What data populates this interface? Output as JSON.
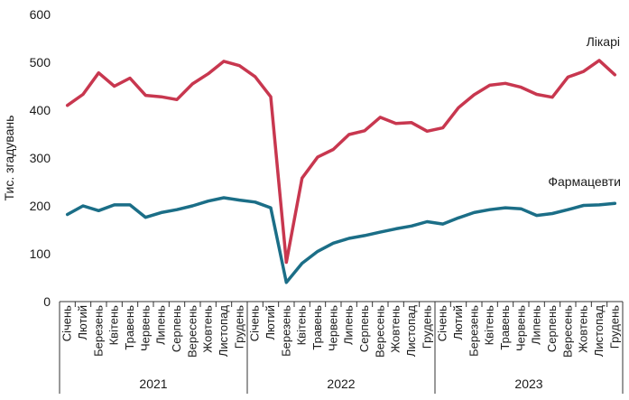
{
  "chart_data": {
    "type": "line",
    "title": "",
    "ylabel": "Тис. згадувань",
    "xlabel": "",
    "ylim": [
      0,
      600
    ],
    "yticks": [
      0,
      100,
      200,
      300,
      400,
      500,
      600
    ],
    "grid": false,
    "legend": "inline labels at line ends",
    "categories": [
      "Січень",
      "Лютий",
      "Березень",
      "Квітень",
      "Травень",
      "Червень",
      "Липень",
      "Серпень",
      "Вересень",
      "Жовтень",
      "Листопад",
      "Грудень",
      "Січень",
      "Лютий",
      "Березень",
      "Квітень",
      "Травень",
      "Червень",
      "Липень",
      "Серпень",
      "Вересень",
      "Жовтень",
      "Листопад",
      "Грудень",
      "Січень",
      "Лютий",
      "Березень",
      "Квітень",
      "Травень",
      "Червень",
      "Липень",
      "Серпень",
      "Вересень",
      "Жовтень",
      "Листопад",
      "Грудень"
    ],
    "years": [
      {
        "label": "2021",
        "months": 12
      },
      {
        "label": "2022",
        "months": 12
      },
      {
        "label": "2023",
        "months": 12
      }
    ],
    "series": [
      {
        "name": "Лікарі",
        "color": "#c8374f",
        "values": [
          410,
          433,
          478,
          450,
          467,
          431,
          428,
          422,
          455,
          476,
          502,
          493,
          470,
          428,
          82,
          258,
          302,
          318,
          349,
          357,
          385,
          372,
          374,
          356,
          363,
          405,
          432,
          452,
          456,
          448,
          433,
          427,
          469,
          481,
          504,
          474
        ]
      },
      {
        "name": "Фармацевти",
        "color": "#1b6e87",
        "values": [
          182,
          200,
          190,
          202,
          202,
          176,
          186,
          192,
          200,
          210,
          217,
          212,
          208,
          196,
          40,
          80,
          105,
          122,
          132,
          138,
          145,
          152,
          158,
          167,
          162,
          175,
          186,
          192,
          196,
          194,
          180,
          184,
          192,
          201,
          202,
          205
        ]
      }
    ]
  }
}
